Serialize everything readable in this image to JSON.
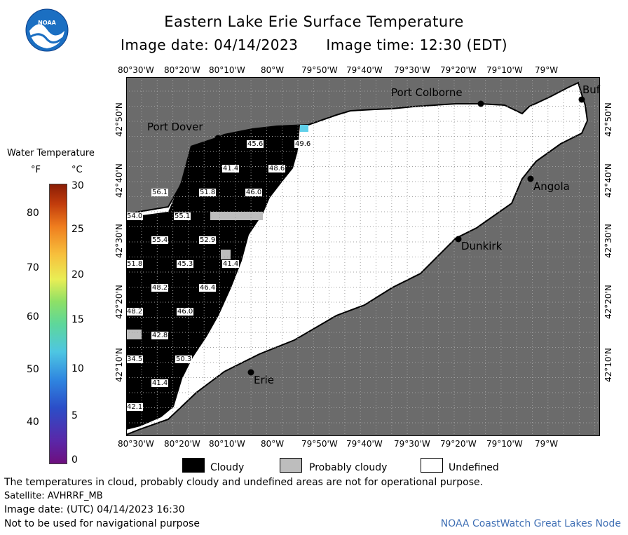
{
  "header": {
    "title": "Eastern Lake Erie Surface Temperature",
    "image_date": "Image date: 04/14/2023",
    "image_time": "Image time: 12:30 (EDT)"
  },
  "logo": {
    "text": "NOAA"
  },
  "colorbar": {
    "title": "Water Temperature",
    "unit_f": "°F",
    "unit_c": "°C",
    "f_ticks": [
      "80",
      "70",
      "60",
      "50",
      "40"
    ],
    "c_ticks": [
      "30",
      "25",
      "20",
      "15",
      "10",
      "5",
      "0"
    ]
  },
  "map": {
    "lon_labels": [
      "80°30'W",
      "80°20'W",
      "80°10'W",
      "80°W",
      "79°50'W",
      "79°40'W",
      "79°30'W",
      "79°20'W",
      "79°10'W",
      "79°W"
    ],
    "lat_labels": [
      "42°50'N",
      "42°40'N",
      "42°30'N",
      "42°20'N",
      "42°10'N"
    ],
    "cities": [
      {
        "name": "Port Dover"
      },
      {
        "name": "Port Colborne"
      },
      {
        "name": "Buf"
      },
      {
        "name": "Angola"
      },
      {
        "name": "Dunkirk"
      },
      {
        "name": "Erie"
      }
    ],
    "temperature_labels": [
      "45.6",
      "49.6",
      "41.4",
      "48.6",
      "56.1",
      "51.8",
      "46.0",
      "54.0",
      "55.1",
      "55.4",
      "52.9",
      "51.8",
      "45.3",
      "41.4",
      "48.2",
      "46.4",
      "48.2",
      "46.0",
      "42.8",
      "34.5",
      "50.3",
      "41.4",
      "42.1"
    ],
    "colors": {
      "land": "#6b6b6b",
      "cloudy": "#000000",
      "probably_cloudy": "#bdbdbd",
      "undefined": "#ffffff",
      "grid": "#a0a0a0"
    }
  },
  "key": {
    "cloudy": "Cloudy",
    "probably_cloudy": "Probably cloudy",
    "undefined": "Undefined"
  },
  "footer": {
    "disclaimer": "The temperatures in cloud, probably cloudy and undefined areas are not for operational purpose.",
    "satellite": "Satellite: AVHRRF_MB",
    "utc_date": "Image date: (UTC) 04/14/2023  16:30",
    "nav_warning": "Not to be used for navigational purpose",
    "credit": "NOAA CoastWatch Great Lakes Node"
  }
}
